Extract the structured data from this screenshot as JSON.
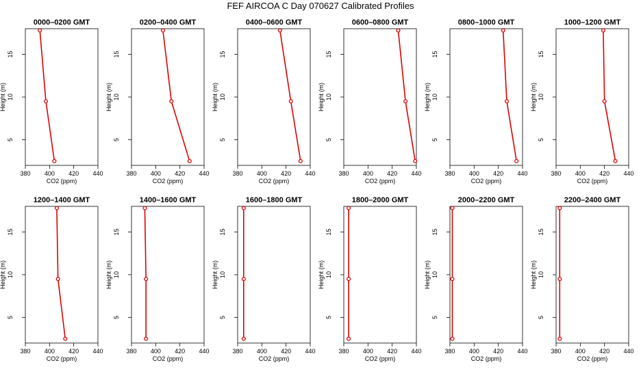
{
  "figure": {
    "title": "FEF AIRCOA C  Day 070627  Calibrated Profiles",
    "line_color": "#dd0000",
    "marker_edge_color": "#dd0000"
  },
  "chart_data": [
    {
      "type": "line",
      "title": "0000–0200 GMT",
      "xlabel": "CO2 (ppm)",
      "ylabel": "Height (m)",
      "xlim": [
        380,
        440
      ],
      "ylim": [
        2,
        18
      ],
      "x_ticks": [
        "380",
        "400",
        "420",
        "440"
      ],
      "y_ticks": [
        "5",
        "10",
        "15"
      ],
      "x": [
        404,
        397,
        392
      ],
      "y": [
        2.5,
        9.5,
        17.8
      ],
      "marker": "circle"
    },
    {
      "type": "line",
      "title": "0200–0400 GMT",
      "xlabel": "CO2 (ppm)",
      "ylabel": "Height (m)",
      "xlim": [
        380,
        440
      ],
      "ylim": [
        2,
        18
      ],
      "x_ticks": [
        "380",
        "400",
        "420",
        "440"
      ],
      "y_ticks": [
        "5",
        "10",
        "15"
      ],
      "x": [
        428,
        413,
        406
      ],
      "y": [
        2.5,
        9.5,
        17.8
      ],
      "marker": "circle"
    },
    {
      "type": "line",
      "title": "0400–0600 GMT",
      "xlabel": "CO2 (ppm)",
      "ylabel": "Height (m)",
      "xlim": [
        380,
        440
      ],
      "ylim": [
        2,
        18
      ],
      "x_ticks": [
        "380",
        "400",
        "420",
        "440"
      ],
      "y_ticks": [
        "5",
        "10",
        "15"
      ],
      "x": [
        432,
        424,
        415
      ],
      "y": [
        2.5,
        9.5,
        17.8
      ],
      "marker": "circle"
    },
    {
      "type": "line",
      "title": "0600–0800 GMT",
      "xlabel": "CO2 (ppm)",
      "ylabel": "Height (m)",
      "xlim": [
        380,
        440
      ],
      "ylim": [
        2,
        18
      ],
      "x_ticks": [
        "380",
        "400",
        "420",
        "440"
      ],
      "y_ticks": [
        "5",
        "10",
        "15"
      ],
      "x": [
        439,
        431,
        425
      ],
      "y": [
        2.5,
        9.5,
        17.8
      ],
      "marker": "circle"
    },
    {
      "type": "line",
      "title": "0800–1000 GMT",
      "xlabel": "CO2 (ppm)",
      "ylabel": "Height (m)",
      "xlim": [
        380,
        440
      ],
      "ylim": [
        2,
        18
      ],
      "x_ticks": [
        "380",
        "400",
        "420",
        "440"
      ],
      "y_ticks": [
        "5",
        "10",
        "15"
      ],
      "x": [
        435,
        427,
        424
      ],
      "y": [
        2.5,
        9.5,
        17.8
      ],
      "marker": "circle"
    },
    {
      "type": "line",
      "title": "1000–1200 GMT",
      "xlabel": "CO2 (ppm)",
      "ylabel": "Height (m)",
      "xlim": [
        380,
        440
      ],
      "ylim": [
        2,
        18
      ],
      "x_ticks": [
        "380",
        "400",
        "420",
        "440"
      ],
      "y_ticks": [
        "5",
        "10",
        "15"
      ],
      "x": [
        429,
        420,
        419
      ],
      "y": [
        2.5,
        9.5,
        17.8
      ],
      "marker": "circle"
    },
    {
      "type": "line",
      "title": "1200–1400 GMT",
      "xlabel": "CO2 (ppm)",
      "ylabel": "Height (m)",
      "xlim": [
        380,
        440
      ],
      "ylim": [
        2,
        18
      ],
      "x_ticks": [
        "380",
        "400",
        "420",
        "440"
      ],
      "y_ticks": [
        "5",
        "10",
        "15"
      ],
      "x": [
        413,
        407,
        406
      ],
      "y": [
        2.5,
        9.5,
        17.8
      ],
      "marker": "circle"
    },
    {
      "type": "line",
      "title": "1400–1600 GMT",
      "xlabel": "CO2 (ppm)",
      "ylabel": "Height (m)",
      "xlim": [
        380,
        440
      ],
      "ylim": [
        2,
        18
      ],
      "x_ticks": [
        "380",
        "400",
        "420",
        "440"
      ],
      "y_ticks": [
        "5",
        "10",
        "15"
      ],
      "x": [
        392,
        392,
        391
      ],
      "y": [
        2.5,
        9.5,
        17.8
      ],
      "marker": "circle"
    },
    {
      "type": "line",
      "title": "1600–1800 GMT",
      "xlabel": "CO2 (ppm)",
      "ylabel": "Height (m)",
      "xlim": [
        380,
        440
      ],
      "ylim": [
        2,
        18
      ],
      "x_ticks": [
        "380",
        "400",
        "420",
        "440"
      ],
      "y_ticks": [
        "5",
        "10",
        "15"
      ],
      "x": [
        385,
        385,
        385
      ],
      "y": [
        2.5,
        9.5,
        17.8
      ],
      "marker": "circle"
    },
    {
      "type": "line",
      "title": "1800–2000 GMT",
      "xlabel": "CO2 (ppm)",
      "ylabel": "Height (m)",
      "xlim": [
        380,
        440
      ],
      "ylim": [
        2,
        18
      ],
      "x_ticks": [
        "380",
        "400",
        "420",
        "440"
      ],
      "y_ticks": [
        "5",
        "10",
        "15"
      ],
      "x": [
        384,
        384,
        384
      ],
      "y": [
        2.5,
        9.5,
        17.8
      ],
      "marker": "circle"
    },
    {
      "type": "line",
      "title": "2000–2200 GMT",
      "xlabel": "CO2 (ppm)",
      "ylabel": "Height (m)",
      "xlim": [
        380,
        440
      ],
      "ylim": [
        2,
        18
      ],
      "x_ticks": [
        "380",
        "400",
        "420",
        "440"
      ],
      "y_ticks": [
        "5",
        "10",
        "15"
      ],
      "x": [
        382,
        382,
        382
      ],
      "y": [
        2.5,
        9.5,
        17.8
      ],
      "marker": "circle"
    },
    {
      "type": "line",
      "title": "2200–2400 GMT",
      "xlabel": "CO2 (ppm)",
      "ylabel": "Height (m)",
      "xlim": [
        380,
        440
      ],
      "ylim": [
        2,
        18
      ],
      "x_ticks": [
        "380",
        "400",
        "420",
        "440"
      ],
      "y_ticks": [
        "5",
        "10",
        "15"
      ],
      "x": [
        383,
        383,
        383
      ],
      "y": [
        2.5,
        9.5,
        17.8
      ],
      "marker": "circle"
    }
  ]
}
